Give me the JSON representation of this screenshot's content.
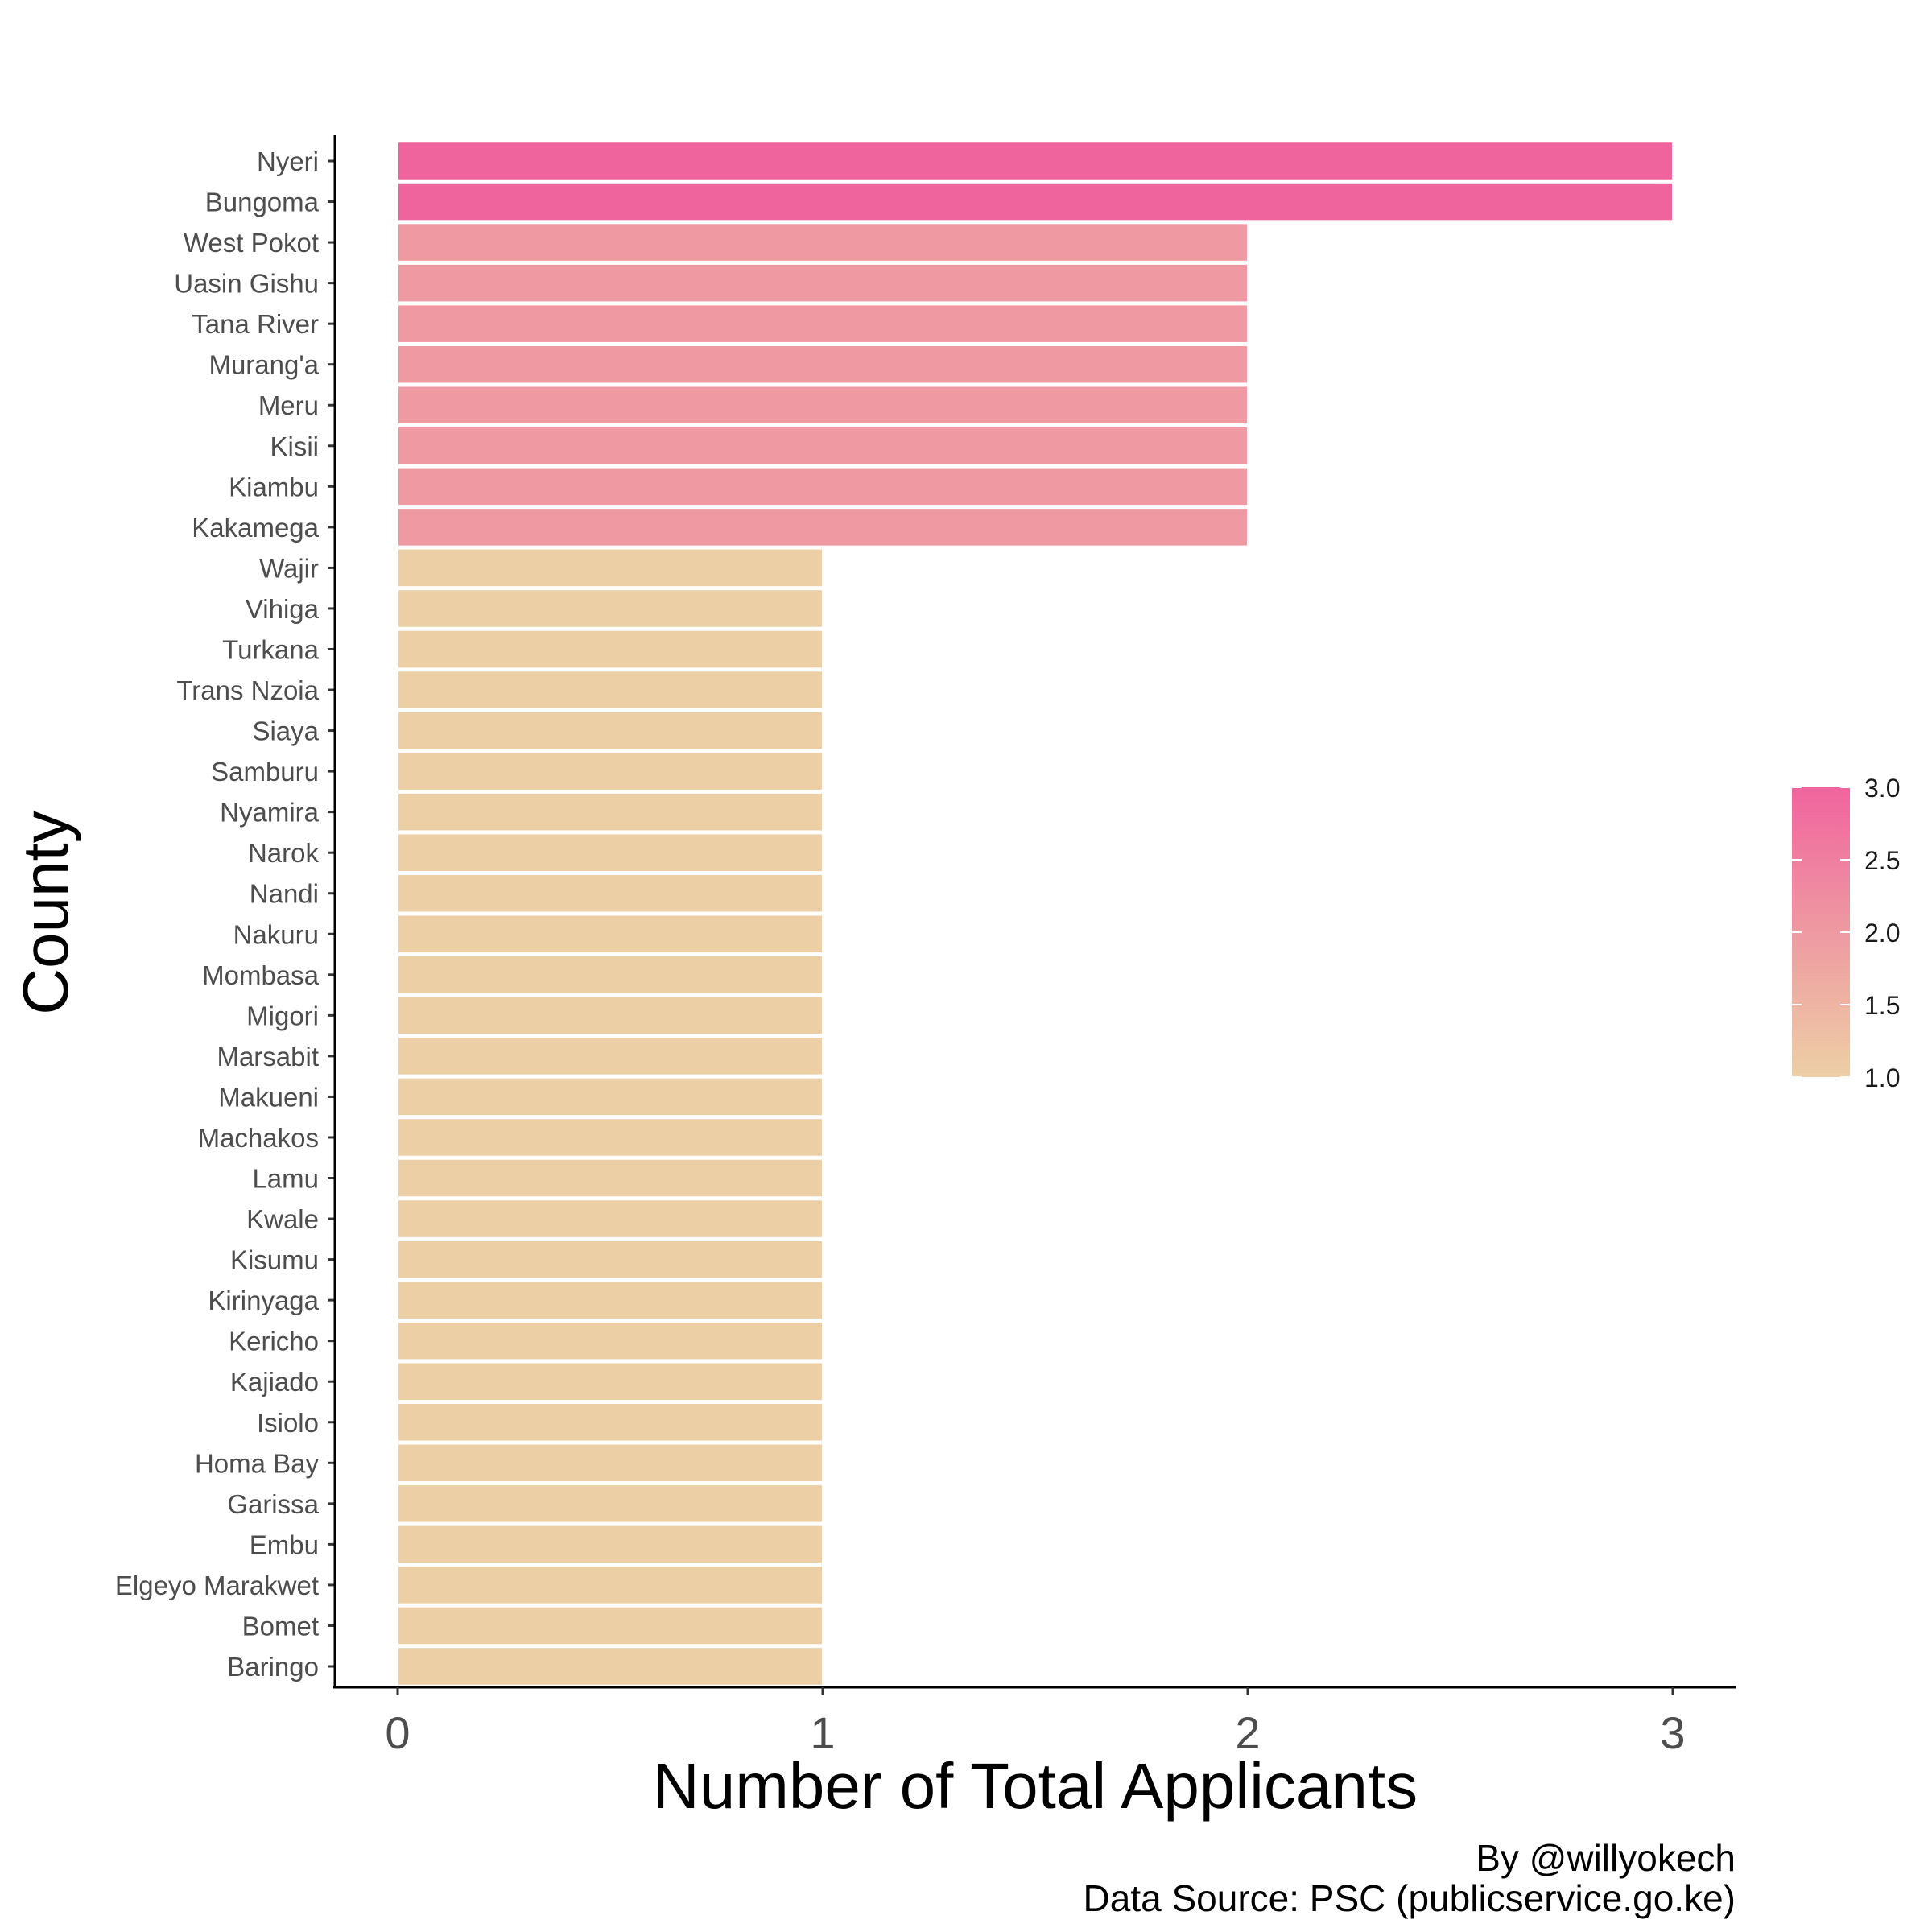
{
  "chart_data": {
    "type": "bar",
    "orientation": "horizontal",
    "categories": [
      "Nyeri",
      "Bungoma",
      "West Pokot",
      "Uasin Gishu",
      "Tana River",
      "Murang'a",
      "Meru",
      "Kisii",
      "Kiambu",
      "Kakamega",
      "Wajir",
      "Vihiga",
      "Turkana",
      "Trans Nzoia",
      "Siaya",
      "Samburu",
      "Nyamira",
      "Narok",
      "Nandi",
      "Nakuru",
      "Mombasa",
      "Migori",
      "Marsabit",
      "Makueni",
      "Machakos",
      "Lamu",
      "Kwale",
      "Kisumu",
      "Kirinyaga",
      "Kericho",
      "Kajiado",
      "Isiolo",
      "Homa Bay",
      "Garissa",
      "Embu",
      "Elgeyo Marakwet",
      "Bomet",
      "Baringo"
    ],
    "values": [
      3,
      3,
      2,
      2,
      2,
      2,
      2,
      2,
      2,
      2,
      1,
      1,
      1,
      1,
      1,
      1,
      1,
      1,
      1,
      1,
      1,
      1,
      1,
      1,
      1,
      1,
      1,
      1,
      1,
      1,
      1,
      1,
      1,
      1,
      1,
      1,
      1,
      1
    ],
    "xlabel": "Number of Total Applicants",
    "ylabel": "County",
    "xlim": [
      -0.15,
      3.15
    ],
    "x_ticks": [
      "0",
      "1",
      "2",
      "3"
    ],
    "grid": false,
    "legend": {
      "type": "gradient",
      "position": "right",
      "min": 1.0,
      "max": 3.0,
      "labels": [
        "3.0",
        "2.5",
        "2.0",
        "1.5",
        "1.0"
      ],
      "low_color": "#EDCFA5",
      "high_color": "#F0649E"
    },
    "caption_lines": [
      "By @willyokech",
      "Data Source: PSC (publicservice.go.ke)"
    ]
  }
}
